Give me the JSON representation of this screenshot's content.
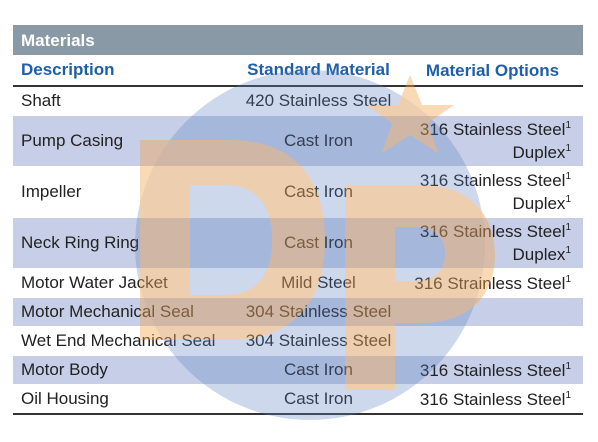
{
  "table": {
    "title": "Materials",
    "headers": {
      "description": "Description",
      "standard": "Standard Material",
      "options": "Material Options"
    },
    "rows": [
      {
        "description": "Shaft",
        "standard": "420 Stainless Steel",
        "options": []
      },
      {
        "description": "Pump Casing",
        "standard": "Cast Iron",
        "options": [
          {
            "text": "316 Stainless Steel",
            "note": "1"
          },
          {
            "text": "Duplex",
            "note": "1"
          }
        ]
      },
      {
        "description": "Impeller",
        "standard": "Cast Iron",
        "options": [
          {
            "text": "316 Stainless Steel",
            "note": "1"
          },
          {
            "text": "Duplex",
            "note": "1"
          }
        ]
      },
      {
        "description": "Neck Ring Ring",
        "standard": "Cast Iron",
        "options": [
          {
            "text": "316 Stainless Steel",
            "note": "1"
          },
          {
            "text": "Duplex",
            "note": "1"
          }
        ]
      },
      {
        "description": "Motor Water Jacket",
        "standard": "Mild Steel",
        "options": [
          {
            "text": "316 Strainless Steel",
            "note": "1"
          }
        ]
      },
      {
        "description": "Motor Mechanical Seal",
        "standard": "304 Stainless Steel",
        "options": []
      },
      {
        "description": "Wet End Mechanical Seal",
        "standard": "304 Stainless Steel",
        "options": []
      },
      {
        "description": "Motor Body",
        "standard": "Cast Iron",
        "options": [
          {
            "text": "316 Stainless Steel",
            "note": "1"
          }
        ]
      },
      {
        "description": "Oil Housing",
        "standard": "Cast Iron",
        "options": [
          {
            "text": "316 Stainless Steel",
            "note": "1"
          }
        ]
      }
    ]
  },
  "colors": {
    "title_bar": "#8a99a6",
    "header_text": "#1e5fa8",
    "row_shade": "#c7cfe8",
    "watermark_blue": "#5b7fc0",
    "watermark_orange": "#f2a14b"
  },
  "watermark": {
    "icon": "dp-logo-watermark"
  }
}
